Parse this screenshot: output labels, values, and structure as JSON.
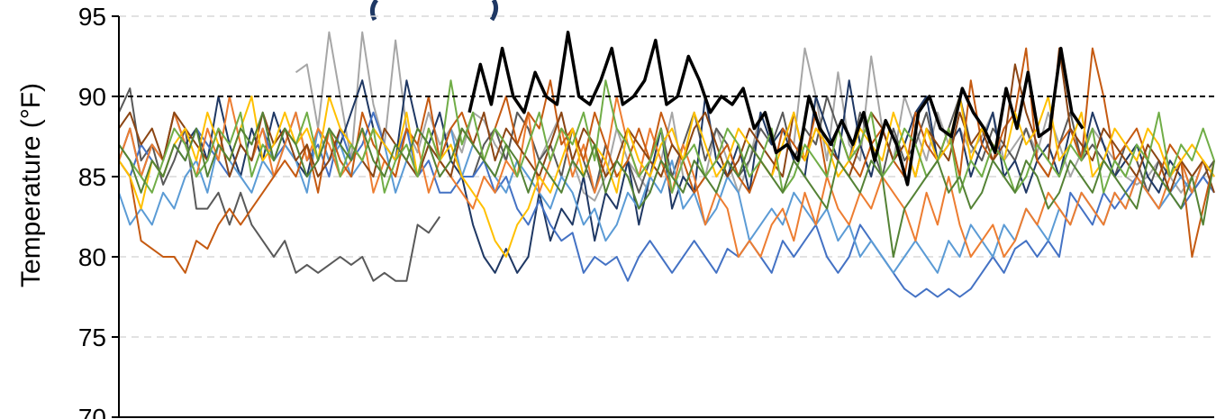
{
  "chart_data": {
    "type": "line",
    "ylabel": "Temperature (°F)",
    "ylim": [
      70,
      95
    ],
    "yticks": [
      "70",
      "75",
      "80",
      "85",
      "90",
      "95"
    ],
    "grid": true,
    "legend": "none",
    "reference_line": {
      "y": 90,
      "style": "dashed",
      "color": "#000000"
    },
    "x_range": [
      0,
      100
    ],
    "series": [
      {
        "color": "#000000",
        "highlight": true,
        "values": [
          null,
          null,
          null,
          null,
          null,
          null,
          null,
          null,
          null,
          null,
          null,
          null,
          null,
          null,
          null,
          null,
          null,
          null,
          null,
          null,
          null,
          null,
          null,
          null,
          null,
          null,
          null,
          null,
          null,
          null,
          null,
          null,
          89,
          92,
          89.5,
          93,
          90,
          89,
          91.5,
          90,
          89.5,
          94,
          90,
          89.5,
          91,
          93,
          89.5,
          90,
          91,
          93.5,
          89.5,
          90,
          92.5,
          91,
          89,
          90,
          89.5,
          90.5,
          88,
          89,
          86.5,
          87,
          86,
          90,
          88,
          87,
          88.5,
          87,
          89,
          86,
          88.5,
          87,
          84.5,
          89,
          90,
          88,
          87.5,
          90.5,
          89,
          88,
          86.5,
          90.5,
          88,
          91.5,
          87.5,
          88,
          93,
          89,
          88,
          null,
          null,
          null,
          null,
          null,
          null,
          null,
          null,
          null,
          null,
          null,
          null
        ]
      },
      {
        "color": "#a6a6a6",
        "values": [
          null,
          null,
          null,
          null,
          null,
          null,
          null,
          null,
          null,
          null,
          null,
          null,
          null,
          null,
          null,
          null,
          91.5,
          92,
          88,
          94,
          90,
          86,
          94,
          89.5,
          87,
          93.5,
          88,
          86.5,
          89,
          87,
          88,
          86.5,
          89,
          88.5,
          87,
          86,
          89,
          88,
          86,
          87.5,
          89,
          86,
          84,
          83.5,
          85,
          88,
          86,
          85,
          84,
          86,
          89,
          85,
          84,
          85,
          88,
          86,
          84,
          86,
          89,
          87,
          88,
          87,
          93,
          90,
          86,
          91.5,
          87,
          86,
          92.5,
          88,
          86,
          90,
          88,
          86,
          89,
          87,
          88,
          86.5,
          87.5,
          89,
          86,
          87,
          88,
          86.5,
          89,
          87,
          85,
          86.5,
          88,
          87,
          86,
          85,
          84.5,
          85,
          86,
          85,
          84,
          85,
          86,
          85
        ]
      },
      {
        "color": "#595959",
        "values": [
          89,
          90.5,
          86,
          87,
          84.5,
          86,
          88,
          83,
          83,
          84,
          82,
          84,
          82,
          81,
          80,
          81,
          79,
          79.5,
          79,
          79.5,
          80,
          79.5,
          80,
          78.5,
          79,
          78.5,
          78.5,
          82,
          81.5,
          82.5,
          null,
          null,
          85,
          87,
          88,
          86,
          89,
          88,
          86,
          87,
          85,
          88,
          86,
          84,
          87,
          85,
          86,
          84,
          86,
          88,
          85,
          87,
          89,
          86,
          88,
          87,
          85,
          86,
          88,
          87,
          89,
          86,
          88,
          87,
          90,
          88,
          86,
          89,
          87,
          85,
          88,
          86,
          87,
          89,
          86,
          88,
          90,
          87,
          86,
          88,
          87,
          86,
          88,
          86,
          85,
          87,
          89,
          86,
          87,
          86,
          85,
          87,
          86,
          84,
          86,
          85,
          86,
          84,
          85,
          86
        ]
      },
      {
        "color": "#1f3864",
        "values": [
          86,
          88,
          85,
          87,
          86,
          89,
          87,
          88,
          86,
          90,
          87,
          85,
          88,
          86,
          89,
          87,
          86,
          85,
          88,
          86,
          87,
          89,
          91,
          88,
          87,
          86,
          91,
          88,
          87,
          89,
          86,
          85,
          82,
          80,
          79,
          80.5,
          79,
          80,
          84,
          81,
          83,
          82,
          85,
          81,
          84,
          83,
          86,
          82,
          85,
          88,
          83,
          85,
          84,
          90,
          86,
          85,
          87,
          84,
          89,
          87,
          88,
          86,
          85,
          90,
          88,
          86,
          91,
          87,
          85,
          88,
          86,
          87,
          89,
          90,
          86,
          87,
          88,
          85,
          87,
          89,
          85,
          86,
          84,
          86,
          87,
          85,
          88,
          86,
          89,
          87,
          85,
          86,
          87,
          85,
          84,
          86,
          85,
          84,
          86,
          85
        ]
      },
      {
        "color": "#4472c4",
        "values": [
          86,
          85,
          87,
          86,
          85,
          87,
          86,
          88,
          87,
          86,
          85,
          87,
          86,
          88,
          86,
          87,
          89,
          86,
          87,
          85,
          88,
          86,
          87,
          89,
          87,
          86,
          88,
          85,
          86,
          84,
          84,
          85,
          85,
          86,
          84,
          85,
          83,
          82,
          83.5,
          82,
          81,
          81.5,
          79,
          80,
          79.5,
          80,
          78.5,
          80,
          81,
          80,
          79,
          80,
          81,
          80,
          79,
          80.5,
          80,
          81,
          80,
          79,
          81,
          80,
          81,
          82,
          80,
          79,
          80,
          82,
          81,
          80,
          79,
          78,
          77.5,
          78,
          77.5,
          78,
          77.5,
          78,
          79,
          80,
          79,
          80.5,
          81,
          80,
          81,
          80,
          84,
          83,
          82,
          84,
          83,
          84,
          85,
          84,
          83,
          84,
          83,
          84,
          85,
          84
        ]
      },
      {
        "color": "#5b9bd5",
        "values": [
          84,
          82,
          83,
          82,
          84,
          83,
          85,
          86,
          84,
          87,
          86,
          85,
          84,
          86,
          85,
          87,
          86,
          84,
          88,
          86,
          87,
          85,
          86,
          88,
          87,
          84,
          86,
          85,
          87,
          86,
          88,
          85,
          87,
          86,
          85,
          84,
          86,
          85,
          84,
          83,
          85,
          84,
          82,
          83,
          81,
          82,
          84,
          83,
          85,
          84,
          86,
          83,
          84,
          82,
          83,
          85,
          84,
          81,
          82,
          83,
          82,
          84,
          83,
          82,
          83,
          81,
          82,
          80,
          81,
          80,
          79,
          80,
          81,
          80,
          79,
          81,
          80,
          82,
          81,
          80,
          82,
          81,
          83,
          82,
          81,
          83,
          82,
          84,
          83,
          82,
          84,
          83,
          85,
          84,
          83,
          84,
          85,
          84,
          86,
          85
        ]
      },
      {
        "color": "#ed7d31",
        "values": [
          86,
          88,
          85,
          87,
          86,
          89,
          87,
          85,
          88,
          86,
          90,
          87,
          86,
          88,
          85,
          87,
          89,
          86,
          88,
          87,
          85,
          86,
          88,
          84,
          86,
          85,
          88,
          87,
          84,
          86,
          85,
          84,
          83,
          85,
          84,
          86,
          85,
          89,
          84,
          86,
          88,
          85,
          87,
          84,
          86,
          90,
          87,
          85,
          88,
          86,
          84,
          87,
          85,
          82,
          84,
          83,
          80,
          81,
          80,
          82,
          83,
          81,
          84,
          82,
          85,
          83,
          82,
          84,
          83,
          85,
          84,
          83,
          81,
          84,
          82,
          85,
          82,
          80,
          81,
          82,
          80,
          81,
          83,
          82,
          84,
          83,
          82,
          84,
          83,
          82,
          84,
          83,
          85,
          84,
          83,
          85,
          86,
          84,
          86,
          85
        ]
      },
      {
        "color": "#c55a11",
        "values": [
          86,
          85,
          81,
          80.5,
          80,
          80,
          79,
          81,
          80.5,
          82,
          83,
          82,
          83,
          84,
          85,
          86,
          85,
          87,
          84,
          88,
          86,
          85,
          89,
          87,
          86,
          85,
          88,
          87,
          90,
          86,
          88,
          89,
          87,
          86,
          88,
          90,
          87,
          89,
          88,
          91,
          87,
          88,
          86,
          89,
          87,
          85,
          86,
          88,
          86,
          89,
          87,
          86,
          84,
          85,
          86,
          87,
          85,
          84,
          86,
          85,
          88,
          87,
          86,
          89,
          85,
          88,
          86,
          85,
          87,
          88,
          86,
          85,
          89,
          87,
          86,
          88,
          85,
          91,
          87,
          86,
          88,
          89,
          93,
          86,
          85,
          87,
          88,
          86,
          93,
          90,
          86,
          87,
          88,
          86,
          85,
          87,
          86,
          80,
          83,
          86
        ]
      },
      {
        "color": "#8b4513",
        "values": [
          88,
          89,
          87,
          88,
          86,
          89,
          88,
          87,
          86,
          88,
          85,
          87,
          86,
          89,
          87,
          88,
          86,
          87,
          85,
          86,
          88,
          87,
          86,
          85,
          88,
          87,
          86,
          85,
          87,
          86,
          85,
          88,
          87,
          89,
          86,
          88,
          87,
          86,
          85,
          87,
          89,
          86,
          88,
          87,
          85,
          86,
          88,
          87,
          86,
          85,
          87,
          86,
          88,
          89,
          87,
          85,
          86,
          88,
          87,
          86,
          85,
          89,
          86,
          88,
          87,
          86,
          85,
          87,
          89,
          88,
          86,
          87,
          85,
          88,
          87,
          86,
          89,
          87,
          88,
          86,
          87,
          92,
          89,
          87,
          86,
          93,
          88,
          87,
          86,
          88,
          87,
          86,
          85,
          87,
          86,
          84,
          86,
          85,
          86,
          84
        ]
      },
      {
        "color": "#ffc000",
        "values": [
          86,
          85,
          83,
          86,
          85,
          87,
          88,
          86,
          89,
          87,
          86,
          88,
          90,
          86,
          87,
          89,
          87,
          88,
          86,
          90,
          88,
          87,
          86,
          88,
          87,
          86,
          89,
          85,
          88,
          86,
          87,
          85,
          84,
          83,
          81,
          80,
          82,
          83,
          85,
          84,
          86,
          88,
          85,
          87,
          86,
          84,
          88,
          86,
          85,
          87,
          88,
          86,
          89,
          87,
          85,
          86,
          88,
          87,
          86,
          85,
          87,
          89,
          86,
          88,
          87,
          85,
          86,
          88,
          87,
          86,
          89,
          87,
          85,
          88,
          86,
          87,
          90,
          86,
          88,
          87,
          86,
          89,
          87,
          88,
          90,
          86,
          87,
          89,
          85,
          86,
          88,
          87,
          86,
          88,
          87,
          85,
          86,
          87,
          86,
          85
        ]
      },
      {
        "color": "#70ad47",
        "values": [
          87,
          86,
          85,
          84,
          86,
          88,
          87,
          85,
          86,
          88,
          87,
          89,
          85,
          87,
          86,
          88,
          87,
          89,
          86,
          88,
          85,
          87,
          86,
          88,
          84,
          86,
          87,
          85,
          88,
          86,
          91,
          87,
          89,
          86,
          88,
          87,
          85,
          87,
          89,
          86,
          88,
          87,
          89,
          86,
          91,
          88,
          87,
          85,
          86,
          88,
          84,
          86,
          87,
          85,
          86,
          88,
          87,
          85,
          86,
          88,
          84,
          85,
          87,
          86,
          85,
          88,
          86,
          87,
          89,
          85,
          86,
          88,
          87,
          85,
          86,
          88,
          84,
          86,
          85,
          87,
          86,
          84,
          85,
          87,
          86,
          85,
          87,
          86,
          88,
          84,
          86,
          85,
          87,
          86,
          89,
          85,
          87,
          86,
          88,
          86
        ]
      },
      {
        "color": "#548235",
        "values": [
          87,
          86,
          84,
          86,
          85,
          87,
          86,
          88,
          85,
          87,
          86,
          88,
          87,
          89,
          86,
          88,
          87,
          85,
          86,
          88,
          87,
          86,
          88,
          86,
          85,
          87,
          86,
          88,
          87,
          85,
          86,
          88,
          87,
          86,
          85,
          87,
          86,
          84,
          86,
          85,
          84,
          86,
          85,
          87,
          84,
          86,
          85,
          83,
          84,
          86,
          85,
          84,
          86,
          85,
          84,
          86,
          85,
          87,
          86,
          85,
          84,
          86,
          85,
          84,
          83,
          86,
          85,
          84,
          86,
          85,
          80,
          83,
          84,
          85,
          86,
          84,
          85,
          83,
          84,
          86,
          85,
          84,
          86,
          85,
          83,
          84,
          86,
          85,
          84,
          86,
          85,
          84,
          83,
          86,
          85,
          84,
          83,
          85,
          82,
          86
        ]
      }
    ]
  }
}
